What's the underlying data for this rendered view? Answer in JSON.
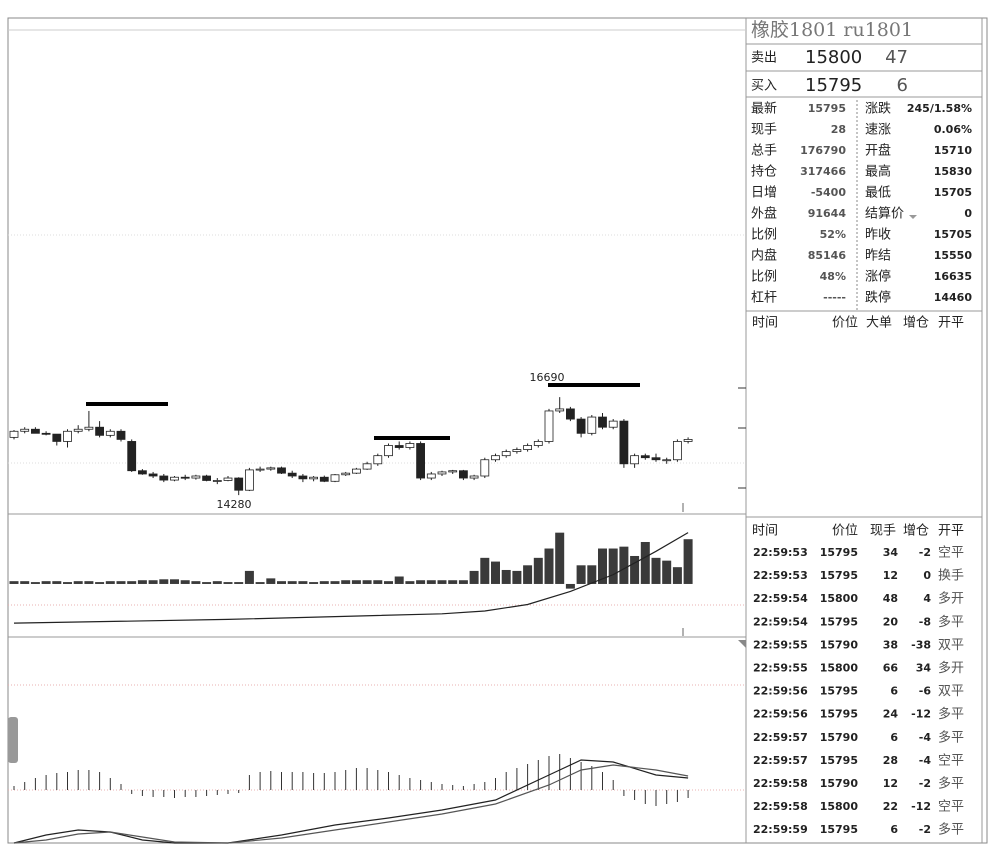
{
  "header": {
    "title": "橡胶1801 ru1801"
  },
  "quote": {
    "sell": {
      "label": "卖出",
      "price": "15800",
      "volume": "47"
    },
    "buy": {
      "label": "买入",
      "price": "15795",
      "volume": "6"
    }
  },
  "stats": [
    [
      "最新",
      "15795",
      "涨跌",
      "245/1.58%"
    ],
    [
      "现手",
      "28",
      "速涨",
      "0.06%"
    ],
    [
      "总手",
      "176790",
      "开盘",
      "15710"
    ],
    [
      "持仓",
      "317466",
      "最高",
      "15830"
    ],
    [
      "日增",
      "-5400",
      "最低",
      "15705"
    ],
    [
      "外盘",
      "91644",
      "结算价",
      "0"
    ],
    [
      "比例",
      "52%",
      "昨收",
      "15705"
    ],
    [
      "内盘",
      "85146",
      "昨结",
      "15550"
    ],
    [
      "比例",
      "48%",
      "涨停",
      "16635"
    ],
    [
      "杠杆",
      "-----",
      "跌停",
      "14460"
    ]
  ],
  "trades_header": [
    "时间",
    "价位",
    "大单",
    "增仓",
    "开平"
  ],
  "ticks": {
    "header": [
      "时间",
      "价位",
      "现手",
      "增仓",
      "开平"
    ],
    "rows": [
      [
        "22:59:53",
        "15795",
        "34",
        "-2",
        "空平"
      ],
      [
        "22:59:53",
        "15795",
        "12",
        "0",
        "换手"
      ],
      [
        "22:59:54",
        "15800",
        "48",
        "4",
        "多开"
      ],
      [
        "22:59:54",
        "15795",
        "20",
        "-8",
        "多平"
      ],
      [
        "22:59:55",
        "15790",
        "38",
        "-38",
        "双平"
      ],
      [
        "22:59:55",
        "15800",
        "66",
        "34",
        "多开"
      ],
      [
        "22:59:56",
        "15795",
        "6",
        "-6",
        "双平"
      ],
      [
        "22:59:56",
        "15795",
        "24",
        "-12",
        "多平"
      ],
      [
        "22:59:57",
        "15790",
        "6",
        "-4",
        "多平"
      ],
      [
        "22:59:57",
        "15795",
        "28",
        "-4",
        "空平"
      ],
      [
        "22:59:58",
        "15790",
        "12",
        "-2",
        "多平"
      ],
      [
        "22:59:58",
        "15800",
        "22",
        "-12",
        "空平"
      ],
      [
        "22:59:59",
        "15795",
        "6",
        "-2",
        "多平"
      ]
    ]
  },
  "chart_data": {
    "type": "candlestick",
    "annotations": [
      "16690",
      "14280"
    ],
    "ylim": [
      13840,
      25720
    ],
    "open": [
      15700,
      15850,
      15900,
      15800,
      15780,
      15600,
      15850,
      15900,
      15950,
      15750,
      15850,
      15600,
      14880,
      14800,
      14750,
      14650,
      14720,
      14700,
      14750,
      14640,
      14640,
      14700,
      14400,
      14900,
      14920,
      14950,
      14820,
      14750,
      14680,
      14720,
      14620,
      14780,
      14820,
      14920,
      15050,
      15250,
      15500,
      15450,
      15550,
      14700,
      14800,
      14850,
      14880,
      14700,
      14750,
      15150,
      15250,
      15350,
      15400,
      15500,
      15600,
      16350,
      16400,
      16150,
      15800,
      16200,
      15950,
      16100,
      15050,
      15250,
      15200,
      15150,
      15150,
      15600
    ],
    "high": [
      15880,
      15950,
      15950,
      15850,
      15780,
      15900,
      16000,
      16350,
      16100,
      15900,
      15900,
      15650,
      14920,
      14850,
      14800,
      14750,
      14780,
      14780,
      14780,
      14700,
      14750,
      14720,
      14950,
      14980,
      14980,
      14980,
      14880,
      14800,
      14750,
      14760,
      14800,
      14850,
      14950,
      15100,
      15300,
      15550,
      15600,
      15600,
      15600,
      14850,
      14880,
      14900,
      14900,
      14780,
      15200,
      15300,
      15400,
      15450,
      15550,
      15650,
      16400,
      16690,
      16450,
      16200,
      16250,
      16300,
      16150,
      16150,
      15300,
      15300,
      15300,
      15200,
      15650,
      15700
    ],
    "low": [
      15650,
      15800,
      15850,
      15750,
      15500,
      15450,
      15800,
      15850,
      15700,
      15700,
      15600,
      14850,
      14780,
      14700,
      14600,
      14620,
      14650,
      14660,
      14620,
      14550,
      14620,
      14280,
      14380,
      14850,
      14880,
      14800,
      14700,
      14600,
      14620,
      14600,
      14600,
      14750,
      14800,
      14900,
      15000,
      15200,
      15400,
      15400,
      14650,
      14650,
      14750,
      14800,
      14650,
      14650,
      14700,
      15100,
      15200,
      15300,
      15350,
      15450,
      15550,
      16300,
      16100,
      15700,
      15750,
      15900,
      15900,
      14950,
      14950,
      15150,
      15100,
      15050,
      15100,
      15550
    ],
    "close": [
      15850,
      15900,
      15800,
      15780,
      15600,
      15850,
      15900,
      15950,
      15750,
      15850,
      15650,
      14880,
      14800,
      14750,
      14650,
      14720,
      14700,
      14750,
      14640,
      14640,
      14700,
      14400,
      14900,
      14920,
      14950,
      14820,
      14750,
      14680,
      14720,
      14620,
      14780,
      14820,
      14920,
      15050,
      15250,
      15500,
      15450,
      15550,
      14700,
      14800,
      14850,
      14880,
      14700,
      14750,
      15150,
      15250,
      15350,
      15400,
      15500,
      15600,
      16350,
      16400,
      16150,
      15800,
      16200,
      15950,
      16100,
      15050,
      15250,
      15200,
      15150,
      15150,
      15600,
      15650
    ],
    "volume": {
      "ylim": [
        -44,
        60
      ],
      "values": [
        3,
        3,
        2,
        3,
        3,
        2,
        3,
        3,
        2,
        3,
        3,
        3,
        4,
        4,
        5,
        5,
        4,
        3,
        2,
        3,
        2,
        2,
        14,
        2,
        6,
        3,
        3,
        3,
        2,
        3,
        3,
        4,
        4,
        4,
        4,
        3,
        8,
        3,
        4,
        4,
        4,
        4,
        4,
        14,
        28,
        24,
        15,
        14,
        20,
        28,
        38,
        55,
        -5,
        20,
        20,
        38,
        38,
        40,
        30,
        45,
        28,
        25,
        18,
        48
      ],
      "line": {
        "x": [
          0,
          10,
          20,
          30,
          40,
          44,
          48,
          52,
          56,
          60,
          63
        ],
        "values": [
          -42,
          -40,
          -38,
          -35,
          -32,
          -29,
          -22,
          -8,
          10,
          35,
          55
        ]
      }
    },
    "macd": {
      "ylim": [
        -53,
        150
      ],
      "values": [
        4,
        8,
        12,
        15,
        17,
        18,
        20,
        20,
        18,
        12,
        6,
        -4,
        -6,
        -7,
        -7,
        -8,
        -7,
        -7,
        -6,
        -5,
        -4,
        -3,
        15,
        18,
        19,
        18,
        18,
        18,
        17,
        17,
        18,
        20,
        22,
        22,
        20,
        18,
        15,
        12,
        10,
        8,
        6,
        5,
        4,
        6,
        8,
        12,
        18,
        22,
        26,
        30,
        34,
        36,
        32,
        28,
        24,
        18,
        10,
        -6,
        -10,
        -14,
        -16,
        -14,
        -12,
        -8
      ],
      "dif": {
        "x": [
          0,
          3,
          6,
          9,
          12,
          15,
          20,
          25,
          30,
          35,
          40,
          45,
          50,
          53,
          56,
          60,
          63
        ],
        "values": [
          -53,
          -45,
          -40,
          -42,
          -50,
          -53,
          -53,
          -45,
          -35,
          -28,
          -20,
          -10,
          15,
          30,
          28,
          15,
          12
        ]
      },
      "dea": {
        "x": [
          0,
          3,
          6,
          9,
          12,
          15,
          20,
          25,
          30,
          35,
          40,
          45,
          50,
          53,
          56,
          60,
          63
        ],
        "values": [
          -53,
          -50,
          -44,
          -42,
          -47,
          -52,
          -53,
          -48,
          -40,
          -32,
          -24,
          -14,
          5,
          20,
          25,
          20,
          14
        ]
      }
    }
  }
}
